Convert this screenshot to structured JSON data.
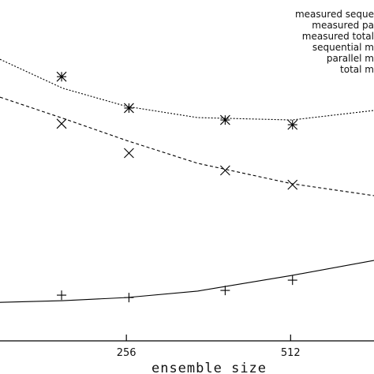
{
  "chart_data": {
    "type": "line",
    "x_label": "ensemble size",
    "xlim": [
      59,
      642
    ],
    "xticks": [
      256,
      512
    ],
    "ylim": [
      0,
      100
    ],
    "legend": "top-right",
    "series": [
      {
        "name": "measured seque",
        "color": "#000000",
        "style": "plus",
        "x": [
          155,
          260,
          410,
          515
        ],
        "values": [
          13.4,
          12.7,
          14.8,
          17.8
        ]
      },
      {
        "name": "measured pa",
        "color": "#000000",
        "style": "cross",
        "x": [
          155,
          260,
          410,
          515
        ],
        "values": [
          63.7,
          55.1,
          50.0,
          45.8
        ]
      },
      {
        "name": "measured total",
        "color": "#000000",
        "style": "star",
        "x": [
          155,
          260,
          410,
          515
        ],
        "values": [
          77.5,
          68.3,
          64.8,
          63.4
        ]
      },
      {
        "name": "sequential m",
        "color": "#000000",
        "style": "solid",
        "x": [
          59,
          157,
          256,
          367,
          514,
          642
        ],
        "values": [
          11.3,
          11.8,
          12.7,
          14.6,
          19.2,
          23.6
        ]
      },
      {
        "name": "parallel m",
        "color": "#000000",
        "style": "dashed",
        "x": [
          59,
          157,
          256,
          367,
          514,
          642
        ],
        "values": [
          71.5,
          65.3,
          58.8,
          52.1,
          46.1,
          42.6
        ]
      },
      {
        "name": "total m",
        "color": "#000000",
        "style": "dotted",
        "x": [
          59,
          157,
          256,
          367,
          514,
          642
        ],
        "values": [
          82.6,
          74.1,
          68.8,
          65.5,
          64.8,
          67.6
        ]
      }
    ]
  }
}
